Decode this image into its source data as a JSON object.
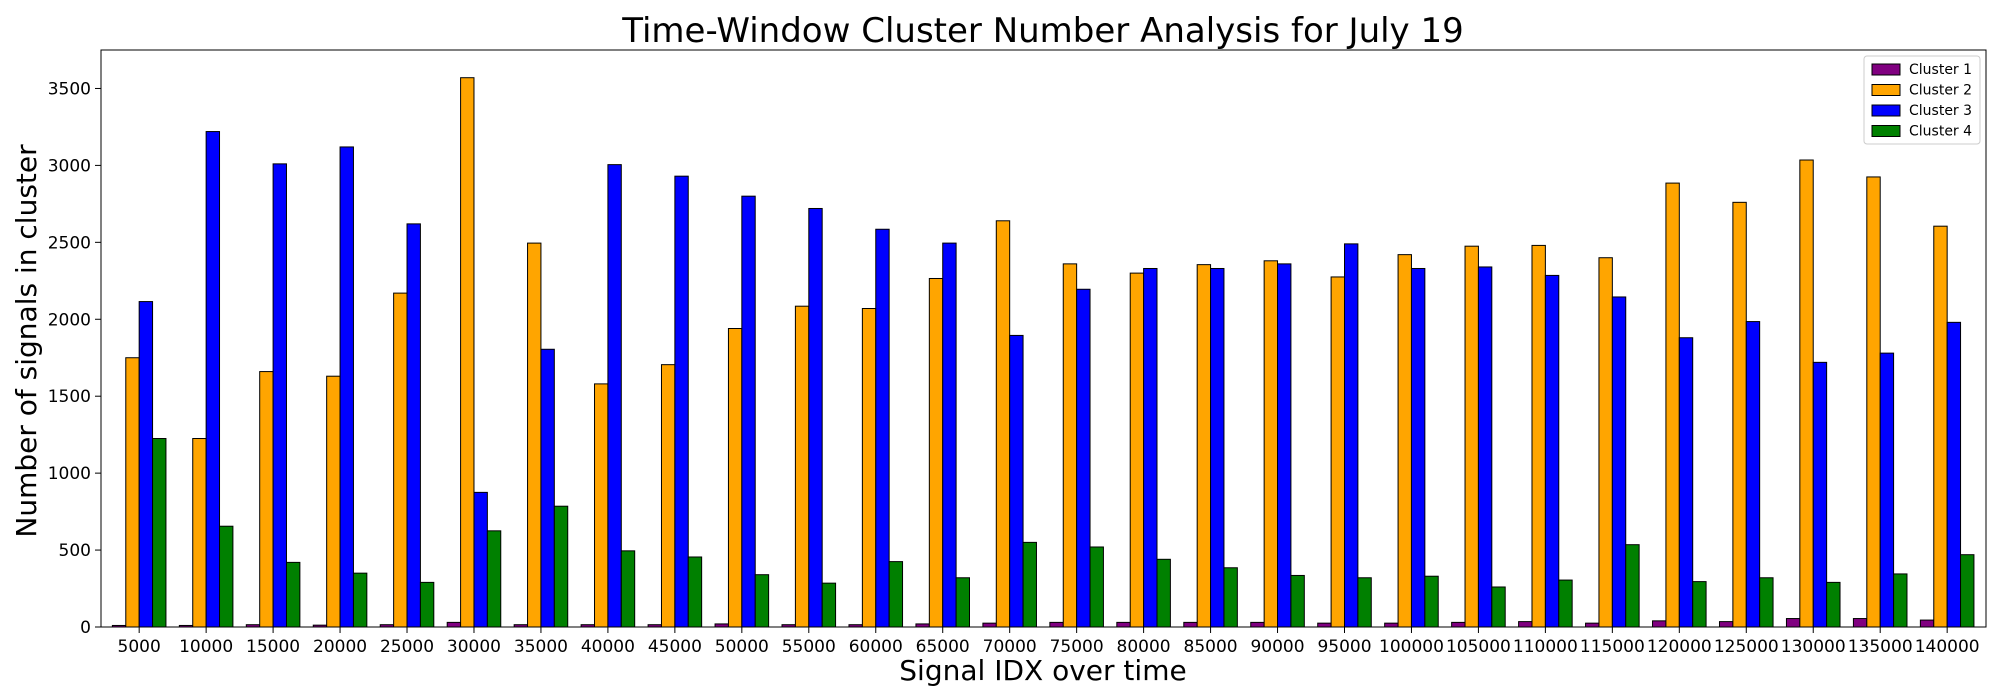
{
  "chart_data": {
    "type": "bar",
    "title": "Time-Window Cluster Number Analysis for July 19",
    "xlabel": "Signal IDX over time",
    "ylabel": "Number of signals in cluster",
    "ylim": [
      0,
      3750
    ],
    "yticks": [
      0,
      500,
      1000,
      1500,
      2000,
      2500,
      3000,
      3500
    ],
    "grid": false,
    "legend_position": "top-right",
    "categories": [
      "5000",
      "10000",
      "15000",
      "20000",
      "25000",
      "30000",
      "35000",
      "40000",
      "45000",
      "50000",
      "55000",
      "60000",
      "65000",
      "70000",
      "75000",
      "80000",
      "85000",
      "90000",
      "95000",
      "100000",
      "105000",
      "110000",
      "115000",
      "120000",
      "125000",
      "130000",
      "135000",
      "140000"
    ],
    "series": [
      {
        "name": "Cluster 1",
        "color": "#800080",
        "values": [
          10,
          10,
          15,
          12,
          15,
          30,
          15,
          15,
          15,
          20,
          15,
          15,
          20,
          25,
          30,
          30,
          30,
          30,
          25,
          25,
          30,
          35,
          25,
          40,
          35,
          55,
          55,
          45
        ]
      },
      {
        "name": "Cluster 2",
        "color": "#ffa500",
        "values": [
          1750,
          1225,
          1660,
          1630,
          2170,
          3570,
          2495,
          1580,
          1705,
          1940,
          2085,
          2070,
          2265,
          2640,
          2360,
          2300,
          2355,
          2380,
          2275,
          2420,
          2475,
          2480,
          2400,
          2885,
          2760,
          3035,
          2925,
          2605
        ]
      },
      {
        "name": "Cluster 3",
        "color": "#0000ff",
        "values": [
          2115,
          3220,
          3010,
          3120,
          2620,
          875,
          1805,
          3005,
          2930,
          2800,
          2720,
          2585,
          2495,
          1895,
          2195,
          2330,
          2330,
          2360,
          2490,
          2330,
          2340,
          2285,
          2145,
          1880,
          1985,
          1720,
          1780,
          1980
        ]
      },
      {
        "name": "Cluster 4",
        "color": "#008000",
        "values": [
          1225,
          655,
          420,
          350,
          290,
          625,
          785,
          495,
          455,
          340,
          285,
          425,
          320,
          550,
          520,
          440,
          385,
          335,
          320,
          330,
          260,
          305,
          535,
          295,
          320,
          290,
          345,
          470
        ]
      }
    ]
  }
}
